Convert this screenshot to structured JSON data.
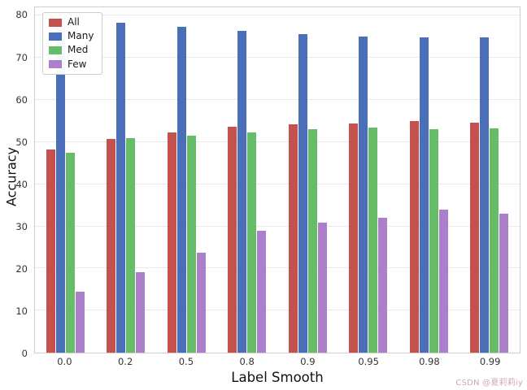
{
  "watermark": "CSDN @夏莉莉iy",
  "chart_data": {
    "type": "bar",
    "title": "",
    "xlabel": "Label Smooth",
    "ylabel": "Accuracy",
    "categories": [
      "0.0",
      "0.2",
      "0.5",
      "0.8",
      "0.9",
      "0.95",
      "0.98",
      "0.99"
    ],
    "series": [
      {
        "name": "All",
        "color": "#c5514e",
        "values": [
          48.3,
          50.8,
          52.2,
          53.6,
          54.2,
          54.4,
          54.9,
          54.7
        ]
      },
      {
        "name": "Many",
        "color": "#4a6fb8",
        "values": [
          79.5,
          78.4,
          77.3,
          76.4,
          75.7,
          75.0,
          74.9,
          74.9
        ]
      },
      {
        "name": "Med",
        "color": "#67bd67",
        "values": [
          47.4,
          50.9,
          51.5,
          52.2,
          53.0,
          53.4,
          53.0,
          53.2
        ]
      },
      {
        "name": "Few",
        "color": "#ab7fc9",
        "values": [
          14.4,
          19.1,
          23.8,
          28.9,
          30.8,
          32.1,
          33.9,
          33.0
        ]
      }
    ],
    "ylim": [
      0,
      82
    ],
    "yticks": [
      0,
      10,
      20,
      30,
      40,
      50,
      60,
      70,
      80
    ],
    "grid": true,
    "legend_position": "upper left"
  }
}
